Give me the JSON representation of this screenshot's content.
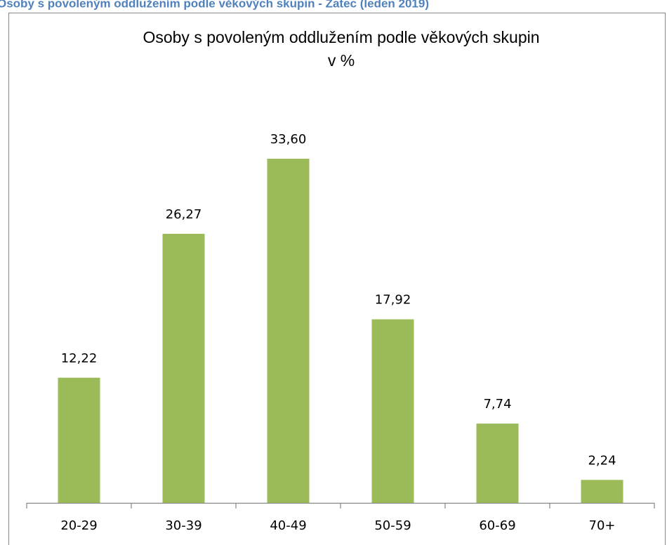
{
  "header": "Osoby s povoleným oddlužením podle věkových skupin - Žatec (leden 2019)",
  "chart_data": {
    "type": "bar",
    "title": "Osoby s povoleným oddlužením podle věkových skupin",
    "subtitle": "v %",
    "categories": [
      "20-29",
      "30-39",
      "40-49",
      "50-59",
      "60-69",
      "70+"
    ],
    "values": [
      12.22,
      26.27,
      33.6,
      17.92,
      7.74,
      2.24
    ],
    "value_labels": [
      "12,22",
      "26,27",
      "33,60",
      "17,92",
      "7,74",
      "2,24"
    ],
    "color": "#9bbb59"
  }
}
